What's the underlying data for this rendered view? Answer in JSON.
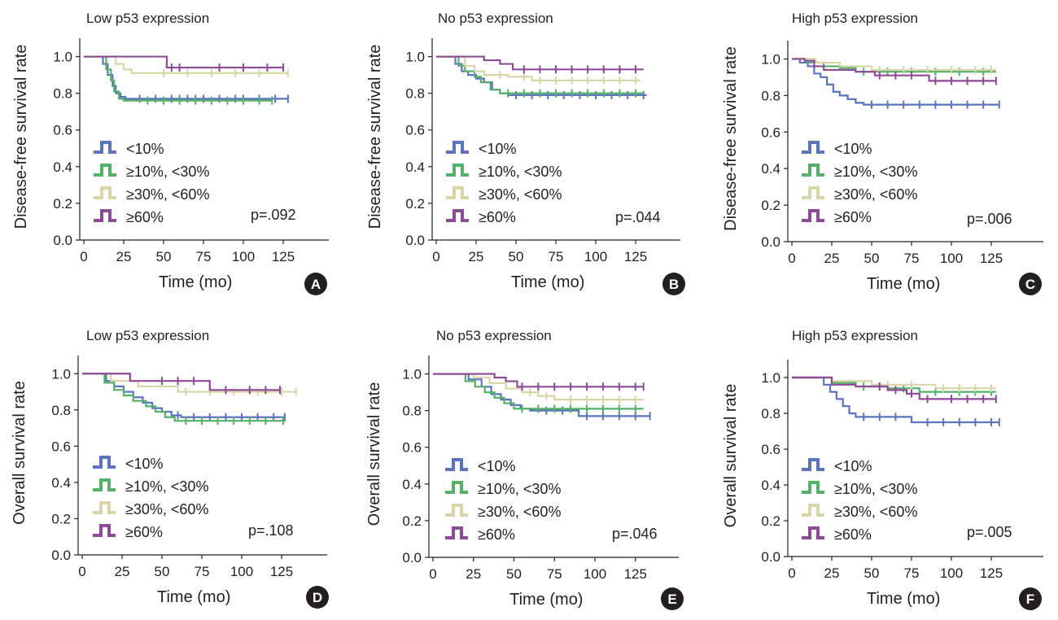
{
  "legend_labels": [
    "<10%",
    "≥10%, <30%",
    "≥30%, <60%",
    "≥60%"
  ],
  "series_colors": [
    "#5b74bd",
    "#55b06a",
    "#d8d5a6",
    "#8c4a97"
  ],
  "x_ticks": [
    "0",
    "25",
    "50",
    "75",
    "100",
    "125"
  ],
  "y_ticks": [
    "0.0",
    "0.2",
    "0.4",
    "0.6",
    "0.8",
    "1.0"
  ],
  "xlabel": "Time (mo)",
  "chart_data": [
    {
      "type": "line",
      "id": "A",
      "title": "Low p53 expression",
      "xlabel": "Time (mo)",
      "ylabel": "Disease-free survival rate",
      "xlim": [
        0,
        150
      ],
      "ylim": [
        0,
        1.1
      ],
      "p_value": "p=.092",
      "series": [
        {
          "name": "<10%",
          "x": [
            0,
            8,
            12,
            15,
            18,
            20,
            23,
            26,
            40,
            128
          ],
          "y": [
            1.0,
            1.0,
            0.96,
            0.9,
            0.84,
            0.8,
            0.78,
            0.77,
            0.77,
            0.77
          ],
          "censored": [
            35,
            45,
            55,
            60,
            65,
            70,
            75,
            85,
            95,
            100,
            110,
            120,
            128
          ]
        },
        {
          "name": "≥10%, <30%",
          "x": [
            0,
            10,
            14,
            17,
            19,
            22,
            25,
            118
          ],
          "y": [
            1.0,
            1.0,
            0.93,
            0.87,
            0.81,
            0.77,
            0.76,
            0.76
          ],
          "censored": [
            40,
            50,
            60,
            70,
            80,
            90,
            100,
            110,
            118
          ]
        },
        {
          "name": "≥30%, <60%",
          "x": [
            0,
            12,
            20,
            25,
            30,
            128
          ],
          "y": [
            1.0,
            1.0,
            0.96,
            0.93,
            0.91,
            0.91
          ],
          "censored": [
            50,
            65,
            80,
            95,
            110,
            128
          ]
        },
        {
          "name": "≥60%",
          "x": [
            0,
            12,
            52,
            125
          ],
          "y": [
            1.0,
            1.0,
            0.94,
            0.94
          ],
          "censored": [
            55,
            60,
            85,
            100,
            115,
            125
          ]
        }
      ]
    },
    {
      "type": "line",
      "id": "B",
      "title": "No p53 expression",
      "xlabel": "Time (mo)",
      "ylabel": "Disease-free survival rate",
      "xlim": [
        0,
        150
      ],
      "ylim": [
        0,
        1.1
      ],
      "p_value": "p=.044",
      "series": [
        {
          "name": "<10%",
          "x": [
            0,
            8,
            12,
            16,
            20,
            25,
            30,
            35,
            40,
            45,
            132
          ],
          "y": [
            1.0,
            1.0,
            0.96,
            0.92,
            0.9,
            0.88,
            0.86,
            0.82,
            0.8,
            0.79,
            0.79
          ],
          "censored": [
            50,
            60,
            70,
            80,
            90,
            100,
            110,
            120,
            130
          ]
        },
        {
          "name": "≥10%, <30%",
          "x": [
            0,
            10,
            14,
            18,
            24,
            28,
            34,
            40,
            130
          ],
          "y": [
            1.0,
            1.0,
            0.95,
            0.92,
            0.89,
            0.86,
            0.82,
            0.8,
            0.8
          ],
          "censored": [
            45,
            55,
            65,
            75,
            85,
            95,
            105,
            115,
            125
          ]
        },
        {
          "name": "≥30%, <60%",
          "x": [
            0,
            12,
            18,
            24,
            30,
            45,
            60,
            128
          ],
          "y": [
            1.0,
            1.0,
            0.95,
            0.92,
            0.9,
            0.89,
            0.87,
            0.87
          ],
          "censored": [
            40,
            55,
            65,
            75,
            85,
            95,
            105,
            115,
            125
          ]
        },
        {
          "name": "≥60%",
          "x": [
            0,
            20,
            30,
            40,
            48,
            130
          ],
          "y": [
            1.0,
            1.0,
            0.98,
            0.96,
            0.93,
            0.93
          ],
          "censored": [
            55,
            65,
            75,
            85,
            95,
            105,
            115,
            125
          ]
        }
      ]
    },
    {
      "type": "line",
      "id": "C",
      "title": "High p53 expression",
      "xlabel": "Time (mo)",
      "ylabel": "Disease-free survival rate",
      "xlim": [
        0,
        150
      ],
      "ylim": [
        0,
        1.1
      ],
      "p_value": "p=.006",
      "series": [
        {
          "name": "<10%",
          "x": [
            0,
            5,
            10,
            14,
            18,
            22,
            26,
            30,
            35,
            40,
            45,
            130
          ],
          "y": [
            1.0,
            0.98,
            0.96,
            0.92,
            0.9,
            0.86,
            0.82,
            0.8,
            0.78,
            0.76,
            0.75,
            0.75
          ],
          "censored": [
            50,
            60,
            70,
            80,
            90,
            100,
            110,
            120,
            130
          ]
        },
        {
          "name": "≥10%, <30%",
          "x": [
            0,
            10,
            20,
            30,
            40,
            128
          ],
          "y": [
            1.0,
            0.98,
            0.96,
            0.95,
            0.93,
            0.93
          ],
          "censored": [
            45,
            60,
            75,
            90,
            105,
            120
          ]
        },
        {
          "name": "≥30%, <60%",
          "x": [
            0,
            15,
            30,
            50,
            128
          ],
          "y": [
            1.0,
            0.98,
            0.96,
            0.94,
            0.94
          ],
          "censored": [
            55,
            70,
            85,
            100,
            115,
            125
          ]
        },
        {
          "name": "≥60%",
          "x": [
            0,
            8,
            14,
            20,
            40,
            52,
            60,
            86,
            128
          ],
          "y": [
            1.0,
            0.99,
            0.96,
            0.94,
            0.93,
            0.91,
            0.91,
            0.88,
            0.88
          ],
          "censored": [
            55,
            65,
            75,
            90,
            100,
            110,
            120,
            128
          ]
        }
      ]
    },
    {
      "type": "line",
      "id": "D",
      "title": "Low p53 expression",
      "xlabel": "Time (mo)",
      "ylabel": "Overall survival rate",
      "xlim": [
        0,
        150
      ],
      "ylim": [
        0,
        1.1
      ],
      "p_value": "p=.108",
      "series": [
        {
          "name": "<10%",
          "x": [
            0,
            15,
            20,
            26,
            32,
            38,
            44,
            50,
            56,
            62,
            127
          ],
          "y": [
            1.0,
            0.96,
            0.93,
            0.9,
            0.87,
            0.84,
            0.81,
            0.79,
            0.77,
            0.76,
            0.76
          ],
          "censored": [
            60,
            70,
            80,
            90,
            100,
            110,
            120,
            127
          ]
        },
        {
          "name": "≥10%, <30%",
          "x": [
            0,
            14,
            20,
            26,
            32,
            40,
            46,
            52,
            58,
            126
          ],
          "y": [
            1.0,
            0.95,
            0.91,
            0.88,
            0.85,
            0.82,
            0.79,
            0.76,
            0.74,
            0.74
          ],
          "censored": [
            65,
            75,
            85,
            95,
            105,
            115,
            126
          ]
        },
        {
          "name": "≥30%, <60%",
          "x": [
            0,
            18,
            35,
            60,
            134
          ],
          "y": [
            1.0,
            0.96,
            0.93,
            0.9,
            0.9
          ],
          "censored": [
            65,
            80,
            95,
            110,
            125,
            134
          ]
        },
        {
          "name": "≥60%",
          "x": [
            0,
            15,
            30,
            80,
            124
          ],
          "y": [
            1.0,
            1.0,
            0.96,
            0.91,
            0.91
          ],
          "censored": [
            50,
            60,
            70,
            90,
            105,
            115,
            124
          ]
        }
      ]
    },
    {
      "type": "line",
      "id": "E",
      "title": "No p53 expression",
      "xlabel": "Time (mo)",
      "ylabel": "Overall survival rate",
      "xlim": [
        0,
        150
      ],
      "ylim": [
        0,
        1.1
      ],
      "p_value": "p=.046",
      "series": [
        {
          "name": "<10%",
          "x": [
            0,
            22,
            30,
            36,
            42,
            48,
            54,
            60,
            90,
            134
          ],
          "y": [
            1.0,
            0.97,
            0.93,
            0.89,
            0.86,
            0.83,
            0.81,
            0.8,
            0.77,
            0.77
          ],
          "censored": [
            70,
            80,
            95,
            105,
            115,
            125,
            134
          ]
        },
        {
          "name": "≥10%, <30%",
          "x": [
            0,
            20,
            26,
            32,
            38,
            44,
            50,
            130
          ],
          "y": [
            1.0,
            0.96,
            0.93,
            0.9,
            0.87,
            0.84,
            0.81,
            0.81
          ],
          "censored": [
            55,
            65,
            75,
            85,
            95,
            105,
            115,
            125
          ]
        },
        {
          "name": "≥30%, <60%",
          "x": [
            0,
            25,
            35,
            45,
            55,
            65,
            75,
            130
          ],
          "y": [
            1.0,
            0.98,
            0.95,
            0.92,
            0.9,
            0.88,
            0.86,
            0.86
          ],
          "censored": [
            60,
            70,
            85,
            95,
            105,
            115,
            125
          ]
        },
        {
          "name": "≥60%",
          "x": [
            0,
            30,
            38,
            45,
            52,
            130
          ],
          "y": [
            1.0,
            1.0,
            0.98,
            0.96,
            0.93,
            0.93
          ],
          "censored": [
            55,
            65,
            75,
            85,
            95,
            105,
            115,
            125,
            130
          ]
        }
      ]
    },
    {
      "type": "line",
      "id": "F",
      "title": "High p53 expression",
      "xlabel": "Time (mo)",
      "ylabel": "Overall survival rate",
      "xlim": [
        0,
        150
      ],
      "ylim": [
        0,
        1.1
      ],
      "p_value": "p=.005",
      "series": [
        {
          "name": "<10%",
          "x": [
            0,
            20,
            24,
            28,
            32,
            36,
            40,
            75,
            130
          ],
          "y": [
            1.0,
            0.96,
            0.92,
            0.88,
            0.84,
            0.8,
            0.78,
            0.75,
            0.75
          ],
          "censored": [
            45,
            55,
            65,
            85,
            95,
            105,
            115,
            125,
            130
          ]
        },
        {
          "name": "≥10%, <30%",
          "x": [
            0,
            25,
            40,
            60,
            80,
            128
          ],
          "y": [
            1.0,
            0.97,
            0.95,
            0.94,
            0.92,
            0.92
          ],
          "censored": [
            45,
            55,
            70,
            90,
            105,
            115,
            125
          ]
        },
        {
          "name": "≥30%, <60%",
          "x": [
            0,
            25,
            50,
            90,
            128
          ],
          "y": [
            1.0,
            0.98,
            0.96,
            0.94,
            0.94
          ],
          "censored": [
            60,
            75,
            95,
            105,
            115,
            125
          ]
        },
        {
          "name": "≥60%",
          "x": [
            0,
            25,
            40,
            60,
            72,
            80,
            128
          ],
          "y": [
            1.0,
            0.96,
            0.95,
            0.93,
            0.91,
            0.88,
            0.88
          ],
          "censored": [
            55,
            65,
            75,
            85,
            100,
            110,
            120,
            128
          ]
        }
      ]
    }
  ]
}
